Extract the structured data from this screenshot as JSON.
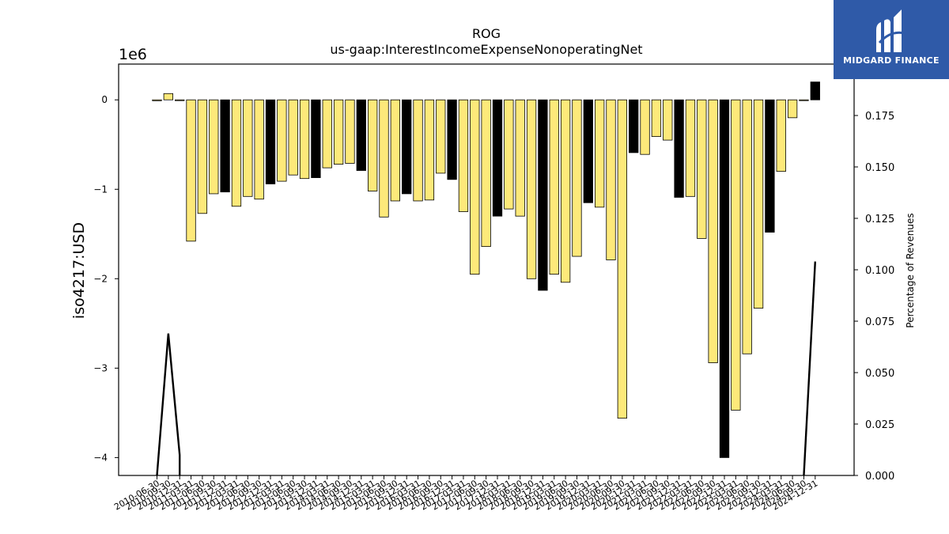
{
  "chart_data": {
    "type": "bar",
    "title": "ROG",
    "subtitle": "us-gaap:InterestIncomeExpenseNonoperatingNet",
    "ylabel": "iso4217:USD",
    "y_multiplier_label": "1e6",
    "y2label": "Percentage of Revenues",
    "ylim": [
      -4.2,
      0.4
    ],
    "y2lim": [
      0.0,
      0.2
    ],
    "yticks": [
      0,
      -1,
      -2,
      -3,
      -4
    ],
    "y2ticks": [
      "0.000",
      "0.025",
      "0.050",
      "0.075",
      "0.100",
      "0.125",
      "0.150",
      "0.175"
    ],
    "colors": {
      "annual": "#000000",
      "quarterly": "#fde97a"
    },
    "categories": [
      "2010-06-30",
      "2010-09-30",
      "2010-12-31",
      "2011-03-31",
      "2011-06-30",
      "2011-09-30",
      "2011-12-31",
      "2012-03-31",
      "2012-06-30",
      "2012-09-30",
      "2012-12-31",
      "2013-03-31",
      "2013-06-30",
      "2013-09-30",
      "2013-12-31",
      "2014-03-31",
      "2014-06-30",
      "2014-09-30",
      "2014-12-31",
      "2015-03-31",
      "2015-06-30",
      "2015-09-30",
      "2015-12-31",
      "2016-03-31",
      "2016-06-30",
      "2016-09-30",
      "2016-12-31",
      "2017-03-31",
      "2017-06-30",
      "2017-09-30",
      "2017-12-31",
      "2018-03-31",
      "2018-06-30",
      "2018-09-30",
      "2018-12-31",
      "2019-03-31",
      "2019-06-30",
      "2019-09-30",
      "2019-12-31",
      "2020-03-31",
      "2020-06-30",
      "2020-09-30",
      "2020-12-31",
      "2021-03-31",
      "2021-06-30",
      "2021-09-30",
      "2021-12-31",
      "2022-03-31",
      "2022-06-30",
      "2022-09-30",
      "2022-12-31",
      "2023-03-31",
      "2023-06-30",
      "2023-09-30",
      "2023-12-31",
      "2024-03-31",
      "2024-06-30",
      "2024-09-30",
      "2024-12-31"
    ],
    "values": [
      -0.01,
      0.07,
      0.0,
      -1.58,
      -1.27,
      -1.05,
      -1.03,
      -1.19,
      -1.08,
      -1.11,
      -0.94,
      -0.91,
      -0.84,
      -0.88,
      -0.87,
      -0.76,
      -0.72,
      -0.71,
      -0.79,
      -1.02,
      -1.31,
      -1.13,
      -1.05,
      -1.13,
      -1.12,
      -0.82,
      -0.89,
      -1.25,
      -1.95,
      -1.64,
      -1.3,
      -1.22,
      -1.3,
      -2.0,
      -2.13,
      -1.95,
      -2.04,
      -1.75,
      -1.15,
      -1.2,
      -1.79,
      -3.56,
      -0.59,
      -0.61,
      -0.41,
      -0.45,
      -1.09,
      -1.08,
      -1.55,
      -2.94,
      -4.0,
      -3.47,
      -2.84,
      -2.33,
      -1.48,
      -0.8,
      -0.2,
      0.0,
      0.2
    ],
    "annual_flags": [
      0,
      0,
      0,
      0,
      0,
      0,
      1,
      0,
      0,
      0,
      1,
      0,
      0,
      0,
      1,
      0,
      0,
      0,
      1,
      0,
      0,
      0,
      1,
      0,
      0,
      0,
      1,
      0,
      0,
      0,
      1,
      0,
      0,
      0,
      1,
      0,
      0,
      0,
      1,
      0,
      0,
      0,
      1,
      0,
      0,
      0,
      1,
      0,
      0,
      0,
      1,
      0,
      0,
      0,
      1,
      0,
      0,
      0,
      1
    ],
    "line_series": {
      "name": "Percentage of Revenues",
      "points": [
        {
          "x": "2010-06-30",
          "y": 0.0
        },
        {
          "x": "2010-09-30",
          "y": 0.069
        },
        {
          "x": "2010-12-31",
          "y": 0.01
        },
        {
          "x": "2010-12-31",
          "y": 0.0
        },
        {
          "x": "2024-09-30",
          "y": 0.0
        },
        {
          "x": "2024-12-31",
          "y": 0.104
        }
      ]
    }
  },
  "logo": {
    "text": "MIDGARD FINANCE"
  }
}
